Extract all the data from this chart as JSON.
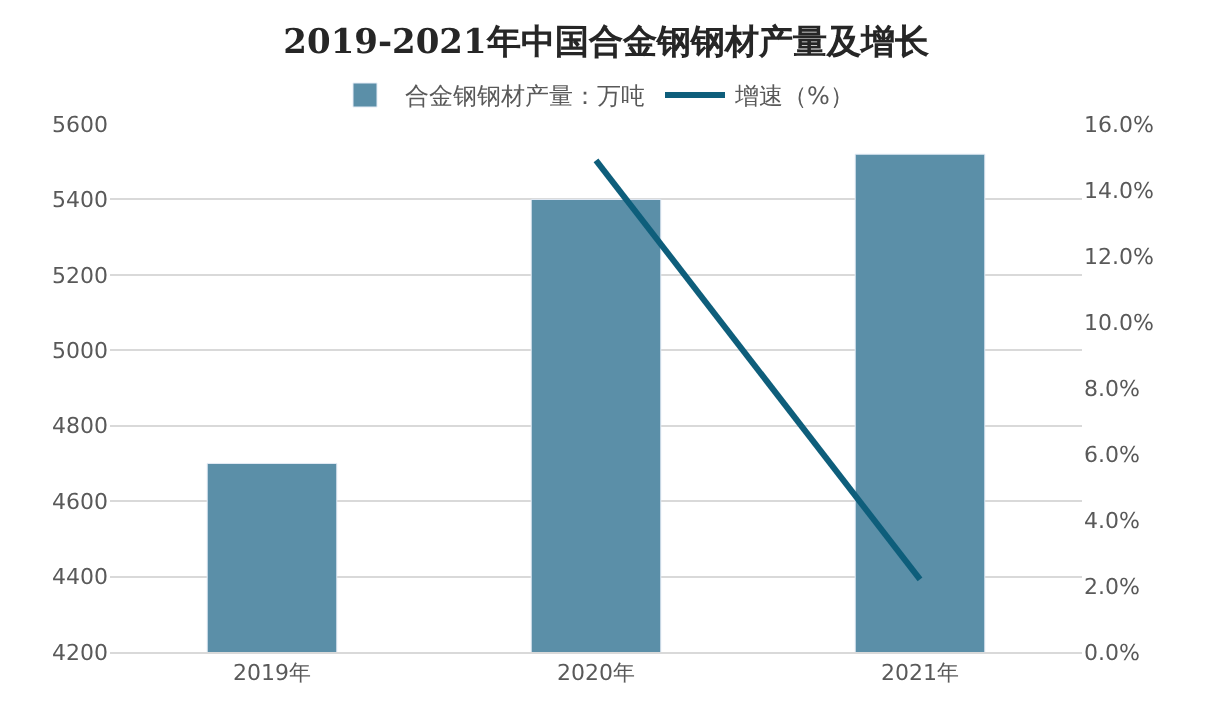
{
  "chart_data": {
    "type": "bar",
    "title": "2019-2021年中国合金钢钢材产量及增长",
    "categories": [
      "2019年",
      "2020年",
      "2021年"
    ],
    "series": [
      {
        "name": "合金钢钢材产量：万吨",
        "color": "#5b8fa8",
        "values": [
          4700,
          5400,
          5520
        ]
      },
      {
        "name": "增速（%）",
        "type": "line",
        "axis": "y2",
        "color": "#0e5e7b",
        "values": [
          null,
          14.9,
          2.2
        ],
        "marker": "none",
        "line_style": "solid"
      }
    ],
    "ylim": [
      4200,
      5600
    ],
    "yticks": [
      4200,
      4400,
      4600,
      4800,
      5000,
      5200,
      5400,
      5600
    ],
    "y2lim": [
      0,
      16
    ],
    "y2ticks": [
      {
        "value": 0,
        "label": "0.0%"
      },
      {
        "value": 2,
        "label": "2.0%"
      },
      {
        "value": 4,
        "label": "4.0%"
      },
      {
        "value": 6,
        "label": "6.0%"
      },
      {
        "value": 8,
        "label": "8.0%"
      },
      {
        "value": 10,
        "label": "10.0%"
      },
      {
        "value": 12,
        "label": "12.0%"
      },
      {
        "value": 14,
        "label": "14.0%"
      },
      {
        "value": 16,
        "label": "16.0%"
      }
    ],
    "grid": "y",
    "legend": "top"
  }
}
